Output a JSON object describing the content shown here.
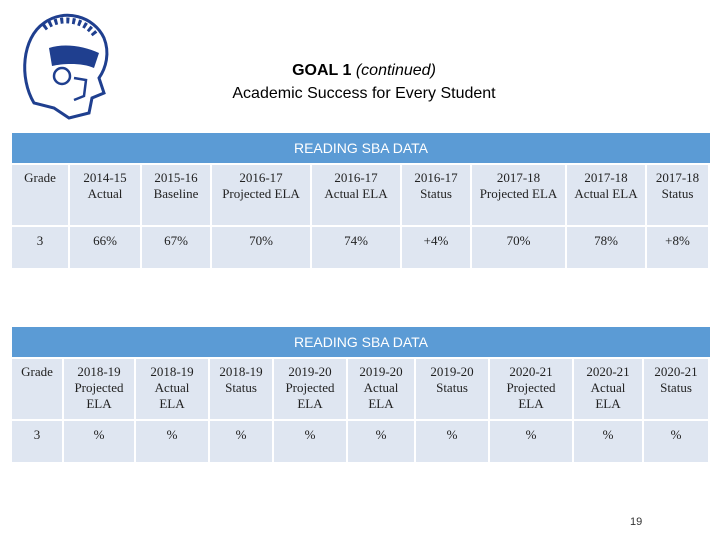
{
  "header": {
    "title_bold": "GOAL 1",
    "title_italic": "(continued)",
    "subtitle": "Academic Success for Every Student"
  },
  "tables": [
    {
      "caption": "READING SBA DATA",
      "columns": [
        "Grade",
        "2014-15 Actual",
        "2015-16 Baseline",
        "2016-17 Projected ELA",
        "2016-17 Actual ELA",
        "2016-17 Status",
        "2017-18 Projected ELA",
        "2017-18 Actual ELA",
        "2017-18 Status"
      ],
      "rows": [
        [
          "3",
          "66%",
          "67%",
          "70%",
          "74%",
          "+4%",
          "70%",
          "78%",
          "+8%"
        ]
      ]
    },
    {
      "caption": "READING SBA DATA",
      "columns": [
        "Grade",
        "2018-19 Projected ELA",
        "2018-19 Actual ELA",
        "2018-19 Status",
        "2019-20 Projected ELA",
        "2019-20 Actual ELA",
        "2019-20 Status",
        "2020-21 Projected ELA",
        "2020-21 Actual ELA",
        "2020-21 Status"
      ],
      "rows": [
        [
          "3",
          "%",
          "%",
          "%",
          "%",
          "%",
          "%",
          "%",
          "%",
          "%"
        ]
      ]
    }
  ],
  "page_number": "19"
}
